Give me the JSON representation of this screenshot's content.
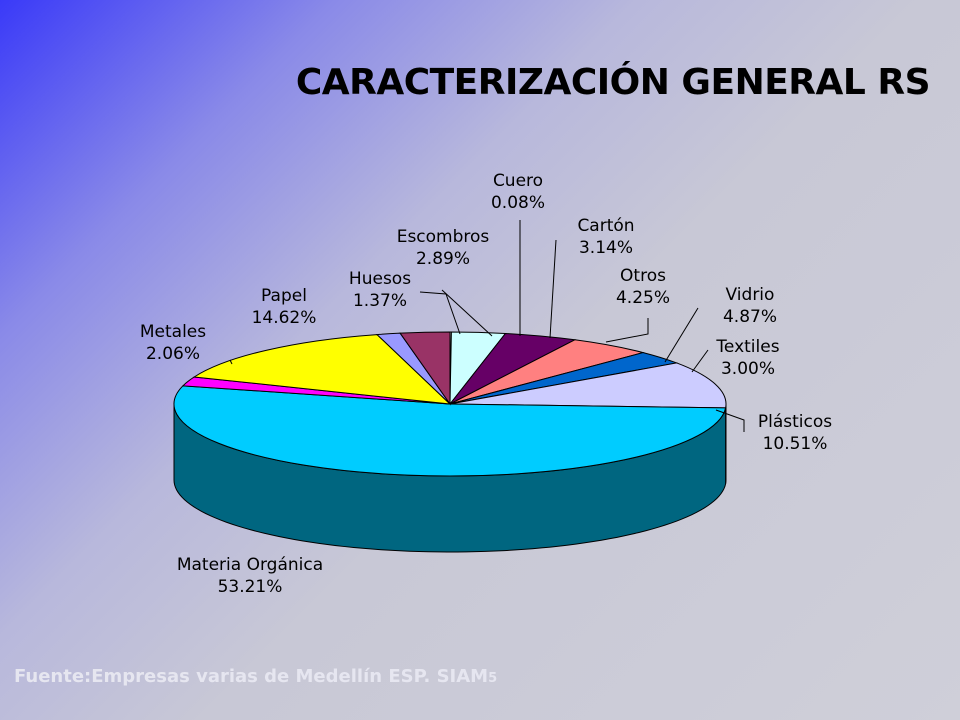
{
  "title": "CARACTERIZACIÓN GENERAL RS",
  "footer": {
    "text": "Fuente:Empresas varias de Medellín ESP.  SIAM",
    "page": "5"
  },
  "chart_data": {
    "type": "pie",
    "style": "3d",
    "title": "CARACTERIZACIÓN GENERAL RS",
    "slices": [
      {
        "name": "Cuero",
        "value": 0.08,
        "label": "0.08%",
        "color": "#ffffff"
      },
      {
        "name": "Cartón",
        "value": 3.14,
        "label": "3.14%",
        "color": "#ccffff"
      },
      {
        "name": "Otros",
        "value": 4.25,
        "label": "4.25%",
        "color": "#660066"
      },
      {
        "name": "Vidrio",
        "value": 4.87,
        "label": "4.87%",
        "color": "#ff8080"
      },
      {
        "name": "Textiles",
        "value": 3.0,
        "label": "3.00%",
        "color": "#0066cc"
      },
      {
        "name": "Plásticos",
        "value": 10.51,
        "label": "10.51%",
        "color": "#ccccff"
      },
      {
        "name": "Materia Orgánica",
        "value": 53.21,
        "label": "53.21%",
        "color": "#00ccff"
      },
      {
        "name": "Metales",
        "value": 2.06,
        "label": "2.06%",
        "color": "#ff00ff"
      },
      {
        "name": "Papel",
        "value": 14.62,
        "label": "14.62%",
        "color": "#ffff00"
      },
      {
        "name": "Huesos",
        "value": 1.37,
        "label": "1.37%",
        "color": "#9999ff"
      },
      {
        "name": "Escombros",
        "value": 2.89,
        "label": "2.89%",
        "color": "#993366"
      }
    ]
  }
}
